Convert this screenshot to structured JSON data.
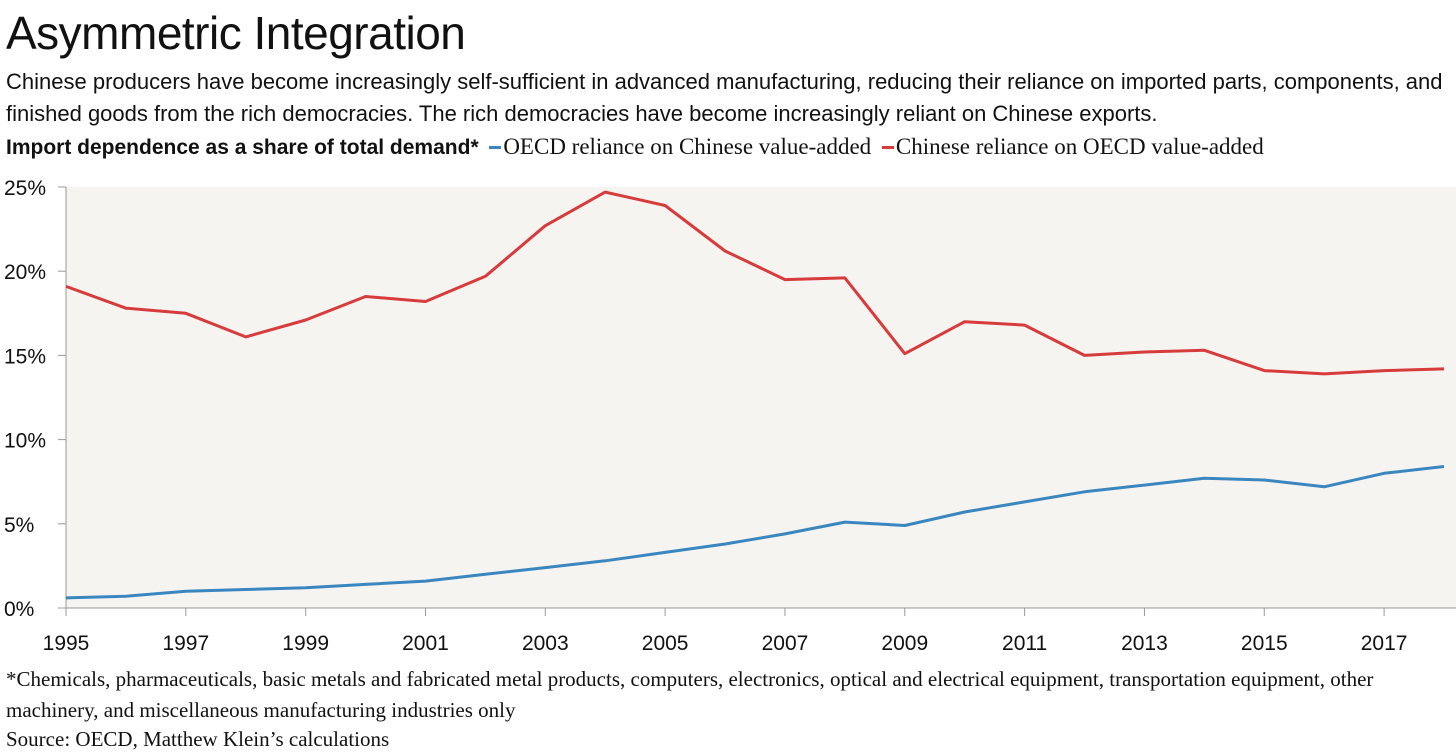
{
  "colors": {
    "plot_background": "#f6f4f1",
    "oecd_series": "#3a87c0",
    "china_series": "#d63c3c",
    "axis": "#999999",
    "text": "#111111"
  },
  "header": {
    "title": "Asymmetric Integration",
    "subtitle": "Chinese producers have become increasingly self-sufficient in advanced manufacturing, reducing their reliance on imported parts, components, and finished goods from the rich democracies. The rich democracies have become increasingly reliant on Chinese exports.",
    "measure_label": "Import dependence as a share of total demand*"
  },
  "footer": {
    "footnote": "*Chemicals, pharmaceuticals, basic metals and fabricated metal products, computers, electronics, optical and electrical equipment, transportation equipment, other machinery, and miscellaneous manufacturing industries only",
    "source": "Source: OECD, Matthew Klein’s calculations"
  },
  "chart_data": {
    "type": "line",
    "title": "Asymmetric Integration",
    "ylabel": "Import dependence as a share of total demand*",
    "xlabel": "",
    "xlim": [
      1995,
      2018.2
    ],
    "ylim": [
      0,
      25
    ],
    "yticks": [
      0,
      5,
      10,
      15,
      20,
      25
    ],
    "ytick_labels": [
      "0%",
      "5%",
      "10%",
      "15%",
      "20%",
      "25%"
    ],
    "xticks": [
      1995,
      1997,
      1999,
      2001,
      2003,
      2005,
      2007,
      2009,
      2011,
      2013,
      2015,
      2017
    ],
    "xtick_labels": [
      "1995",
      "1997",
      "1999",
      "2001",
      "2003",
      "2005",
      "2007",
      "2009",
      "2011",
      "2013",
      "2015",
      "2017"
    ],
    "legend_placement": "top, inline",
    "grid": false,
    "x": [
      1995,
      1996,
      1997,
      1998,
      1999,
      2000,
      2001,
      2002,
      2003,
      2004,
      2005,
      2006,
      2007,
      2008,
      2009,
      2010,
      2011,
      2012,
      2013,
      2014,
      2015,
      2016,
      2017,
      2018
    ],
    "series": [
      {
        "name": "OECD reliance on Chinese value-added",
        "color": "#3a87c0",
        "values": [
          0.6,
          0.7,
          1.0,
          1.1,
          1.2,
          1.4,
          1.6,
          2.0,
          2.4,
          2.8,
          3.3,
          3.8,
          4.4,
          5.1,
          4.9,
          5.7,
          6.3,
          6.9,
          7.3,
          7.7,
          7.6,
          7.2,
          8.0,
          8.4
        ]
      },
      {
        "name": "Chinese reliance on OECD value-added",
        "color": "#d63c3c",
        "values": [
          19.1,
          17.8,
          17.5,
          16.1,
          17.1,
          18.5,
          18.2,
          19.7,
          22.7,
          24.7,
          23.9,
          21.2,
          19.5,
          19.6,
          15.1,
          17.0,
          16.8,
          15.0,
          15.2,
          15.3,
          14.1,
          13.9,
          14.1,
          14.2
        ]
      }
    ]
  }
}
